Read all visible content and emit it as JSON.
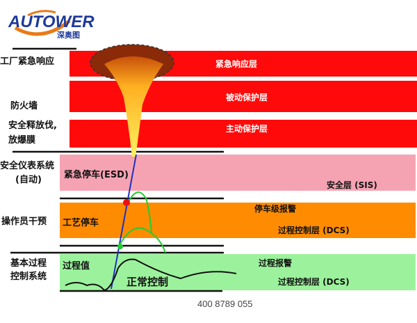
{
  "logo": {
    "brand": "AUTOWER",
    "subtitle": "深奥图",
    "colors": {
      "blue": "#1e3a9a",
      "orange": "#e87a1a"
    }
  },
  "colors": {
    "red": "#ff0a0a",
    "pink": "#f5a3b3",
    "orange": "#ff8c00",
    "green": "#9cf29c"
  },
  "layers": [
    {
      "left": "工厂紧急响应",
      "band": "紧急响应层"
    },
    {
      "left": "防火墙",
      "band": "被动保护层"
    },
    {
      "left": [
        "安全释放伐,",
        "放爆膜"
      ],
      "band": "主动保护层"
    },
    {
      "left": [
        "安全仪表系统",
        "(自动)"
      ],
      "inner": "紧急停车(ESD)",
      "band": "安全层 (SIS)"
    },
    {
      "left": "操作员干预",
      "inner": "工艺停车",
      "band": [
        "停车级报警",
        "过程控制层 (DCS)"
      ]
    },
    {
      "left": [
        "基本过程",
        "控制系统"
      ],
      "inner": [
        "过程值",
        "正常控制"
      ],
      "band": [
        "过程报警",
        "过程控制层 (DCS)"
      ]
    }
  ],
  "phone": "400 8789 055"
}
